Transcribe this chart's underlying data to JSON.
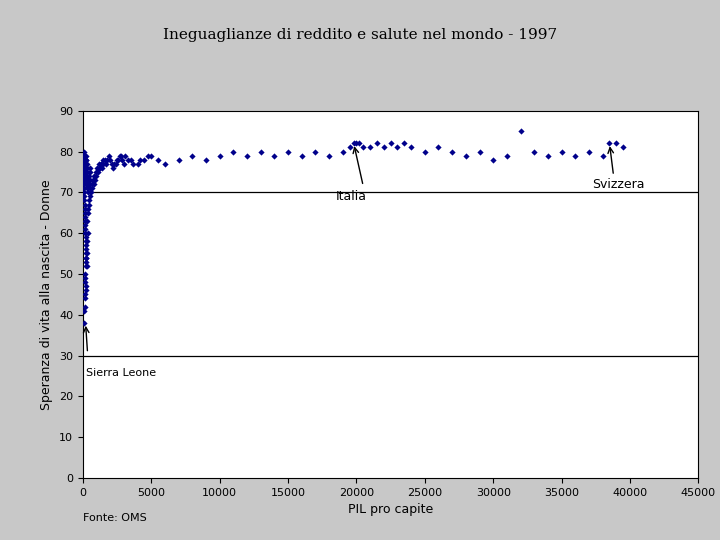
{
  "title": "Ineguaglianze di reddito e salute nel mondo - 1997",
  "xlabel": "PIL pro capite",
  "ylabel": "Speranza di vita alla nascita - Donne",
  "fonte": "Fonte: OMS",
  "xlim": [
    0,
    45000
  ],
  "ylim": [
    0,
    90
  ],
  "xticks": [
    0,
    5000,
    10000,
    15000,
    20000,
    25000,
    30000,
    35000,
    40000,
    45000
  ],
  "yticks": [
    0,
    10,
    20,
    30,
    40,
    50,
    60,
    70,
    80,
    90
  ],
  "hlines": [
    30,
    70
  ],
  "dot_color": "#00008B",
  "background_color": "#c8c8c8",
  "plot_bg": "#ffffff",
  "scatter_data": [
    [
      120,
      38
    ],
    [
      150,
      42
    ],
    [
      180,
      44
    ],
    [
      220,
      46
    ],
    [
      170,
      48
    ],
    [
      100,
      41
    ],
    [
      130,
      45
    ],
    [
      160,
      49
    ],
    [
      200,
      52
    ],
    [
      210,
      54
    ],
    [
      190,
      50
    ],
    [
      250,
      47
    ],
    [
      280,
      55
    ],
    [
      310,
      58
    ],
    [
      350,
      60
    ],
    [
      300,
      63
    ],
    [
      380,
      65
    ],
    [
      400,
      66
    ],
    [
      420,
      67
    ],
    [
      450,
      68
    ],
    [
      500,
      69
    ],
    [
      350,
      70
    ],
    [
      280,
      71
    ],
    [
      320,
      72
    ],
    [
      260,
      72
    ],
    [
      240,
      73
    ],
    [
      200,
      73
    ],
    [
      220,
      74
    ],
    [
      180,
      74
    ],
    [
      160,
      75
    ],
    [
      140,
      75
    ],
    [
      130,
      76
    ],
    [
      110,
      76
    ],
    [
      100,
      77
    ],
    [
      90,
      77
    ],
    [
      80,
      76
    ],
    [
      70,
      75
    ],
    [
      60,
      74
    ],
    [
      50,
      73
    ],
    [
      75,
      72
    ],
    [
      85,
      71
    ],
    [
      95,
      70
    ],
    [
      105,
      69
    ],
    [
      115,
      68
    ],
    [
      125,
      67
    ],
    [
      135,
      66
    ],
    [
      145,
      65
    ],
    [
      155,
      64
    ],
    [
      165,
      63
    ],
    [
      175,
      62
    ],
    [
      185,
      61
    ],
    [
      195,
      60
    ],
    [
      205,
      59
    ],
    [
      215,
      58
    ],
    [
      225,
      57
    ],
    [
      235,
      56
    ],
    [
      245,
      55
    ],
    [
      255,
      54
    ],
    [
      265,
      53
    ],
    [
      275,
      52
    ],
    [
      600,
      70
    ],
    [
      700,
      71
    ],
    [
      800,
      72
    ],
    [
      900,
      73
    ],
    [
      1000,
      74
    ],
    [
      1100,
      75
    ],
    [
      1200,
      76
    ],
    [
      1300,
      77
    ],
    [
      1400,
      76
    ],
    [
      1500,
      77
    ],
    [
      1600,
      78
    ],
    [
      1700,
      77
    ],
    [
      1800,
      78
    ],
    [
      1900,
      79
    ],
    [
      2000,
      78
    ],
    [
      2100,
      77
    ],
    [
      2200,
      76
    ],
    [
      2300,
      77
    ],
    [
      2500,
      78
    ],
    [
      2700,
      79
    ],
    [
      3000,
      77
    ],
    [
      3500,
      78
    ],
    [
      4000,
      77
    ],
    [
      4500,
      78
    ],
    [
      5000,
      79
    ],
    [
      5500,
      78
    ],
    [
      6000,
      77
    ],
    [
      7000,
      78
    ],
    [
      8000,
      79
    ],
    [
      9000,
      78
    ],
    [
      10000,
      79
    ],
    [
      11000,
      80
    ],
    [
      12000,
      79
    ],
    [
      13000,
      80
    ],
    [
      14000,
      79
    ],
    [
      15000,
      80
    ],
    [
      16000,
      79
    ],
    [
      17000,
      80
    ],
    [
      18000,
      79
    ],
    [
      19000,
      80
    ],
    [
      19500,
      81
    ],
    [
      19800,
      82
    ],
    [
      20000,
      82
    ],
    [
      20200,
      82
    ],
    [
      20500,
      81
    ],
    [
      21000,
      81
    ],
    [
      21500,
      82
    ],
    [
      22000,
      81
    ],
    [
      22500,
      82
    ],
    [
      23000,
      81
    ],
    [
      23500,
      82
    ],
    [
      24000,
      81
    ],
    [
      25000,
      80
    ],
    [
      26000,
      81
    ],
    [
      27000,
      80
    ],
    [
      28000,
      79
    ],
    [
      29000,
      80
    ],
    [
      30000,
      78
    ],
    [
      31000,
      79
    ],
    [
      32000,
      85
    ],
    [
      33000,
      80
    ],
    [
      34000,
      79
    ],
    [
      35000,
      80
    ],
    [
      36000,
      79
    ],
    [
      37000,
      80
    ],
    [
      38000,
      79
    ],
    [
      38500,
      82
    ],
    [
      39000,
      82
    ],
    [
      39500,
      81
    ],
    [
      550,
      71
    ],
    [
      650,
      72
    ],
    [
      750,
      73
    ],
    [
      850,
      74
    ],
    [
      950,
      75
    ],
    [
      1050,
      76
    ],
    [
      1150,
      77
    ],
    [
      1250,
      76
    ],
    [
      1350,
      77
    ],
    [
      1450,
      78
    ],
    [
      400,
      71
    ],
    [
      450,
      72
    ],
    [
      500,
      73
    ],
    [
      480,
      74
    ],
    [
      520,
      75
    ],
    [
      560,
      76
    ],
    [
      380,
      73
    ],
    [
      340,
      74
    ],
    [
      320,
      75
    ],
    [
      300,
      76
    ],
    [
      280,
      77
    ],
    [
      260,
      78
    ],
    [
      240,
      79
    ],
    [
      220,
      78
    ],
    [
      200,
      77
    ],
    [
      180,
      78
    ],
    [
      160,
      79
    ],
    [
      140,
      78
    ],
    [
      120,
      77
    ],
    [
      2400,
      77
    ],
    [
      2600,
      78
    ],
    [
      2800,
      79
    ],
    [
      2900,
      78
    ],
    [
      3100,
      79
    ],
    [
      3300,
      78
    ],
    [
      3700,
      77
    ],
    [
      4200,
      78
    ],
    [
      4800,
      79
    ],
    [
      100,
      80
    ],
    [
      110,
      79
    ],
    [
      120,
      78
    ],
    [
      130,
      77
    ],
    [
      140,
      76
    ],
    [
      150,
      77
    ],
    [
      160,
      78
    ],
    [
      170,
      77
    ],
    [
      80,
      78
    ],
    [
      90,
      79
    ],
    [
      65,
      77
    ],
    [
      75,
      76
    ],
    [
      85,
      75
    ],
    [
      95,
      74
    ],
    [
      105,
      73
    ]
  ]
}
